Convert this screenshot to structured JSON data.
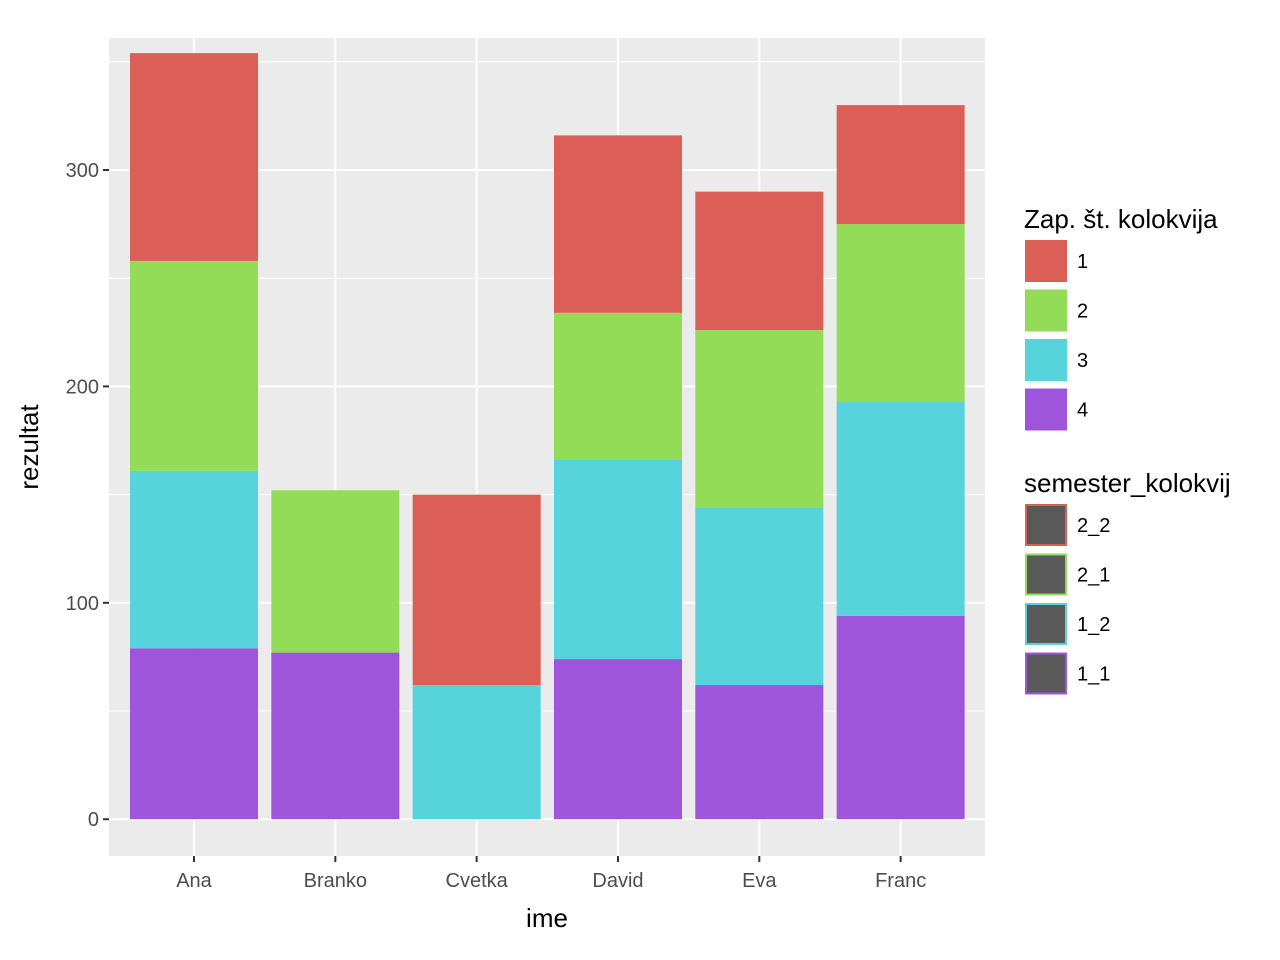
{
  "chart_data": {
    "type": "bar",
    "stacked": true,
    "categories": [
      "Ana",
      "Branko",
      "Cvetka",
      "David",
      "Eva",
      "Franc"
    ],
    "series": [
      {
        "name": "4",
        "color": "#9e55dc",
        "values": [
          79,
          77,
          0,
          74,
          62,
          94
        ]
      },
      {
        "name": "3",
        "color": "#57d3db",
        "values": [
          82,
          0,
          62,
          92,
          82,
          99
        ]
      },
      {
        "name": "2",
        "color": "#92dc58",
        "values": [
          97,
          75,
          0,
          68,
          82,
          82
        ]
      },
      {
        "name": "1",
        "color": "#dc5f57",
        "values": [
          96,
          0,
          88,
          82,
          64,
          55
        ]
      }
    ],
    "xlabel": "ime",
    "ylabel": "rezultat",
    "ylim": [
      -17,
      361
    ],
    "yticks": [
      0,
      100,
      200,
      300
    ],
    "grid": true,
    "panel_background": "#ebebeb",
    "legend_position": "right",
    "legends": [
      {
        "title": "Zap. št. kolokvija",
        "entries": [
          {
            "label": "1",
            "color": "#dc5f57"
          },
          {
            "label": "2",
            "color": "#92dc58"
          },
          {
            "label": "3",
            "color": "#57d3db"
          },
          {
            "label": "4",
            "color": "#9e55dc"
          }
        ]
      },
      {
        "title": "semester_kolokvij",
        "fill": "#595959",
        "entries": [
          {
            "label": "2_2",
            "color": "#dc5f57"
          },
          {
            "label": "2_1",
            "color": "#92dc58"
          },
          {
            "label": "1_2",
            "color": "#57d3db"
          },
          {
            "label": "1_1",
            "color": "#9e55dc"
          }
        ]
      }
    ]
  }
}
